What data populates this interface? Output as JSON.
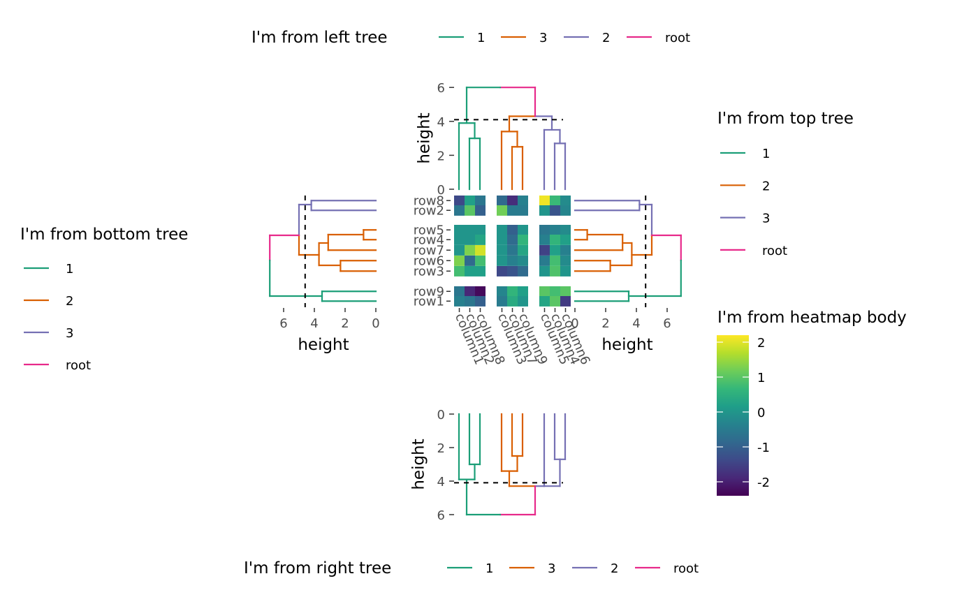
{
  "colors": {
    "c1": "#1B9E77",
    "c2": "#D95F02",
    "c3": "#7570B3",
    "root": "#E7298A",
    "cutline": "#000000",
    "viridis": [
      "#440154",
      "#482878",
      "#3E4A89",
      "#31688E",
      "#26828E",
      "#1F9E89",
      "#35B779",
      "#6DCD59",
      "#B4DE2C",
      "#FDE725"
    ]
  },
  "axis": {
    "height_label": "height",
    "height_ticks": [
      "0",
      "2",
      "4",
      "6"
    ]
  },
  "rows": [
    "row8",
    "row2",
    "row5",
    "row4",
    "row7",
    "row6",
    "row3",
    "row9",
    "row1"
  ],
  "columns": [
    "column1",
    "column2",
    "column8",
    "column3",
    "column7",
    "column9",
    "column5",
    "column4",
    "column6"
  ],
  "legends": {
    "left_tree": {
      "title": "I'm from left tree",
      "items": [
        "1",
        "3",
        "2",
        "root"
      ]
    },
    "top_tree": {
      "title": "I'm from top tree",
      "items": [
        "1",
        "2",
        "3",
        "root"
      ]
    },
    "bottom_tree": {
      "title": "I'm from bottom tree",
      "items": [
        "1",
        "2",
        "3",
        "root"
      ]
    },
    "right_tree": {
      "title": "I'm from right tree",
      "items": [
        "1",
        "3",
        "2",
        "root"
      ]
    },
    "heatmap_body": {
      "title": "I'm from heatmap body",
      "ticks": [
        "2",
        "1",
        "0",
        "-1",
        "-2"
      ]
    }
  },
  "chart_data": {
    "type": "heatmap",
    "row_labels": [
      "row8",
      "row2",
      "row5",
      "row4",
      "row7",
      "row6",
      "row3",
      "row9",
      "row1"
    ],
    "column_labels": [
      "column1",
      "column2",
      "column8",
      "column3",
      "column7",
      "column9",
      "column5",
      "column4",
      "column6"
    ],
    "values": [
      [
        -1.4,
        0.2,
        -0.6,
        -0.8,
        -1.8,
        -0.4,
        2.1,
        0.7,
        -0.2
      ],
      [
        -0.6,
        1.0,
        -1.0,
        1.2,
        -0.5,
        -0.5,
        0.0,
        -1.2,
        -0.3
      ],
      [
        0.0,
        0.0,
        0.0,
        0.0,
        -1.0,
        0.0,
        -0.6,
        -0.4,
        -0.2
      ],
      [
        0.0,
        0.0,
        0.3,
        0.0,
        -0.8,
        0.6,
        -0.4,
        0.6,
        0.2
      ],
      [
        0.0,
        1.3,
        1.9,
        0.0,
        -0.6,
        0.3,
        -1.5,
        0.2,
        -0.4
      ],
      [
        1.3,
        -0.8,
        0.8,
        0.0,
        -0.4,
        -0.2,
        -0.5,
        0.8,
        -0.2
      ],
      [
        0.8,
        0.2,
        0.2,
        -1.4,
        -1.2,
        -0.8,
        0.0,
        0.9,
        0.0
      ],
      [
        -0.6,
        -1.9,
        -2.3,
        -0.3,
        0.6,
        0.2,
        1.0,
        0.8,
        1.0
      ],
      [
        -0.4,
        -0.6,
        -1.0,
        -0.5,
        0.4,
        0.0,
        0.3,
        1.0,
        -1.6
      ]
    ],
    "row_groups": [
      [
        0,
        1
      ],
      [
        2,
        3,
        4,
        5,
        6
      ],
      [
        7,
        8
      ]
    ],
    "column_groups": [
      [
        0,
        1,
        2
      ],
      [
        3,
        4,
        5
      ],
      [
        6,
        7,
        8
      ]
    ],
    "color_range": [
      -2.4,
      2.2
    ],
    "dendrogram_height_range": [
      0,
      6
    ],
    "cut_height": 4.1
  }
}
